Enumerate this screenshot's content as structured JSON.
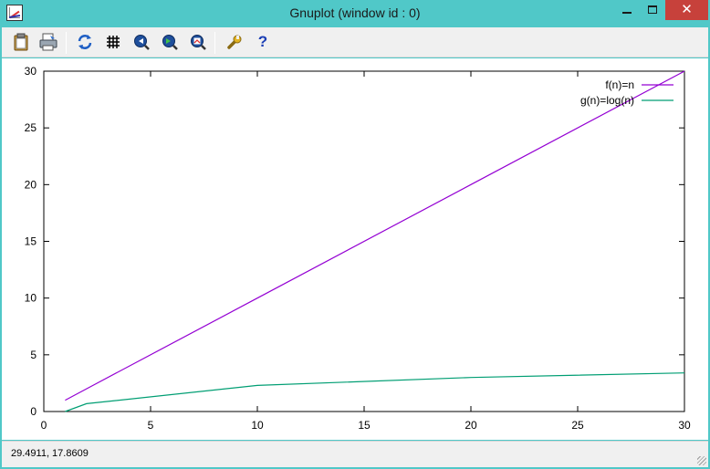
{
  "window": {
    "title": "Gnuplot (window id : 0)",
    "minimize_label": "",
    "maximize_label": "",
    "close_label": "✕"
  },
  "toolbar": {
    "icons": [
      "copy-clipboard-icon",
      "print-icon",
      "replot-icon",
      "grid-icon",
      "zoom-previous-icon",
      "zoom-next-icon",
      "autoscale-icon",
      "options-wrench-icon",
      "help-icon"
    ]
  },
  "status": {
    "coordinates": "29.4911,  17.8609"
  },
  "colors": {
    "window_frame": "#50c8c8",
    "close_button": "#c7413b",
    "series_f": "#9400d3",
    "series_g": "#009e73"
  },
  "chart_data": {
    "type": "line",
    "title": "",
    "xlabel": "",
    "ylabel": "",
    "xlim": [
      0,
      30
    ],
    "ylim": [
      0,
      30
    ],
    "xticks": [
      0,
      5,
      10,
      15,
      20,
      25,
      30
    ],
    "yticks": [
      0,
      5,
      10,
      15,
      20,
      25,
      30
    ],
    "grid": false,
    "legend": "top-right",
    "series": [
      {
        "name": "f(n)=n",
        "color": "#9400d3",
        "x": [
          1,
          2,
          10,
          20,
          30
        ],
        "y": [
          1,
          2,
          10,
          20,
          30
        ]
      },
      {
        "name": "g(n)=log(n)",
        "color": "#009e73",
        "x": [
          1,
          2,
          10,
          20,
          30
        ],
        "y": [
          0,
          0.693,
          2.303,
          2.996,
          3.401
        ]
      }
    ]
  }
}
